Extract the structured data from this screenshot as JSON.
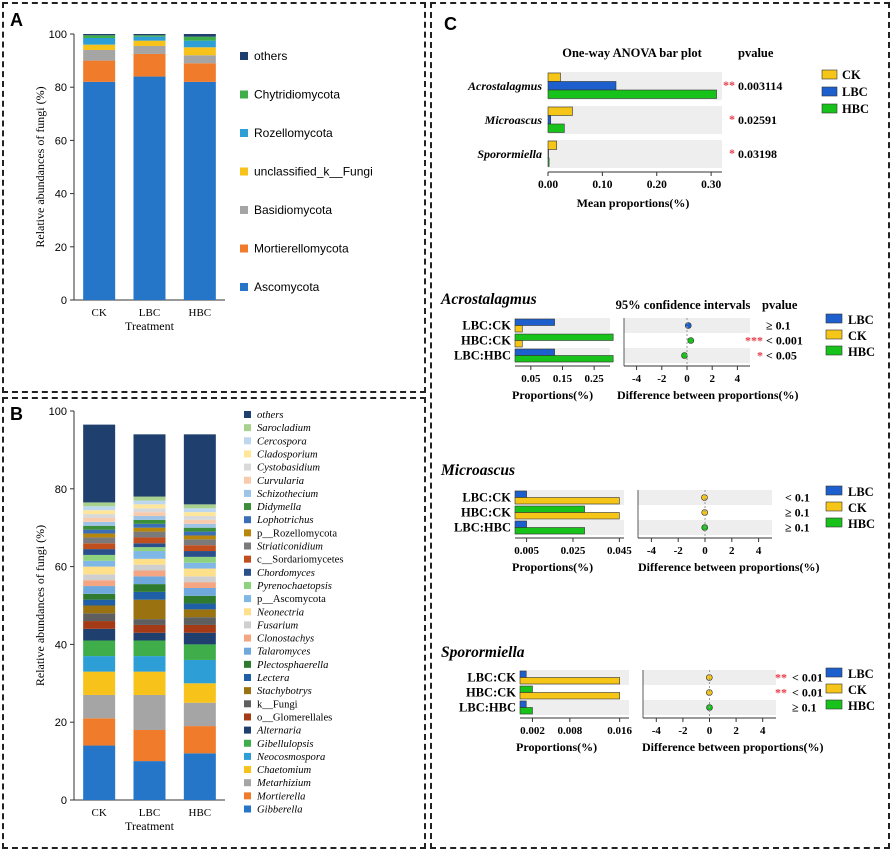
{
  "colors": {
    "others": "#1f3f6e",
    "Chytridiomycota": "#3fae4a",
    "Rozellomycota": "#2e9fd6",
    "unclassified_k__Fungi": "#f7c21a",
    "Basidiomycota": "#a5a5a5",
    "Mortierellomycota": "#f07b2a",
    "Ascomycota": "#2576c8",
    "CK": "#f5c518",
    "LBC": "#1d5fcc",
    "HBC": "#17c21a",
    "star": "#e5424d"
  },
  "chart_data": [
    {
      "panel": "A",
      "type": "bar",
      "stacked": true,
      "categories": [
        "CK",
        "LBC",
        "HBC"
      ],
      "xlabel": "Treatment",
      "ylabel": "Relative  abundances of fungi  (%)",
      "ylim": [
        0,
        100
      ],
      "yticks": [
        0,
        20,
        40,
        60,
        80,
        100
      ],
      "series": [
        {
          "name": "Ascomycota",
          "values": [
            82,
            84,
            82
          ]
        },
        {
          "name": "Mortierellomycota",
          "values": [
            8,
            8.5,
            7
          ]
        },
        {
          "name": "Basidiomycota",
          "values": [
            4,
            3,
            3
          ]
        },
        {
          "name": "unclassified_k__Fungi",
          "values": [
            2,
            2,
            3
          ]
        },
        {
          "name": "Rozellomycota",
          "values": [
            2.5,
            1.5,
            2.5
          ]
        },
        {
          "name": "Chytridiomycota",
          "values": [
            1,
            0.5,
            1.5
          ]
        },
        {
          "name": "others",
          "values": [
            0.5,
            0.5,
            1
          ]
        }
      ],
      "legend": [
        "others",
        "Chytridiomycota",
        "Rozellomycota",
        "unclassified_k__Fungi",
        "Basidiomycota",
        "Mortierellomycota",
        "Ascomycota"
      ]
    },
    {
      "panel": "B",
      "type": "bar",
      "stacked": true,
      "categories": [
        "CK",
        "LBC",
        "HBC"
      ],
      "xlabel": "Treatment",
      "ylabel": "Relative  abundances of fungi  (%)",
      "ylim": [
        0,
        100
      ],
      "yticks": [
        0,
        20,
        40,
        60,
        80,
        100
      ],
      "series": [
        {
          "name": "Gibberella",
          "color": "#2576c8",
          "italic": true,
          "values": [
            14,
            10,
            12
          ]
        },
        {
          "name": "Mortierella",
          "color": "#f07b2a",
          "italic": true,
          "values": [
            7,
            8,
            7
          ]
        },
        {
          "name": "Metarhizium",
          "color": "#a5a5a5",
          "italic": true,
          "values": [
            6,
            9,
            6
          ]
        },
        {
          "name": "Chaetomium",
          "color": "#f7c21a",
          "italic": true,
          "values": [
            6,
            6,
            5
          ]
        },
        {
          "name": "Neocosmospora",
          "color": "#2e9fd6",
          "italic": true,
          "values": [
            4,
            4,
            6
          ]
        },
        {
          "name": "Gibellulopsis",
          "color": "#3fae4a",
          "italic": true,
          "values": [
            4,
            4,
            4
          ]
        },
        {
          "name": "Alternaria",
          "color": "#1f3f6e",
          "italic": true,
          "values": [
            3,
            2,
            3
          ]
        },
        {
          "name": "o__Glomerellales",
          "color": "#a53a16",
          "italic": false,
          "values": [
            2,
            2,
            2
          ]
        },
        {
          "name": "k__Fungi",
          "color": "#5f5f5f",
          "italic": false,
          "values": [
            2,
            1.5,
            2
          ]
        },
        {
          "name": "Stachybotrys",
          "color": "#9a7310",
          "italic": true,
          "values": [
            2,
            5,
            2
          ]
        },
        {
          "name": "Lectera",
          "color": "#1e5fa5",
          "italic": true,
          "values": [
            1.5,
            2,
            1.5
          ]
        },
        {
          "name": "Plectosphaerella",
          "color": "#2e7a2f",
          "italic": true,
          "values": [
            1.5,
            2,
            2
          ]
        },
        {
          "name": "Talaromyces",
          "color": "#6fa8dc",
          "italic": true,
          "values": [
            2,
            2,
            2
          ]
        },
        {
          "name": "Clonostachys",
          "color": "#f4a582",
          "italic": true,
          "values": [
            1.5,
            1.5,
            1.5
          ]
        },
        {
          "name": "Fusarium",
          "color": "#cfcfcf",
          "italic": true,
          "values": [
            1.5,
            1.5,
            1.5
          ]
        },
        {
          "name": "Neonectria",
          "color": "#ffe08a",
          "italic": true,
          "values": [
            2,
            1.5,
            2
          ]
        },
        {
          "name": "p__Ascomycota",
          "color": "#7fb7e6",
          "italic": false,
          "values": [
            1.5,
            2,
            1.5
          ]
        },
        {
          "name": "Pyrenochaetopsis",
          "color": "#8ed27e",
          "italic": true,
          "values": [
            1.5,
            1,
            1.5
          ]
        },
        {
          "name": "Chordomyces",
          "color": "#2a4f8a",
          "italic": true,
          "values": [
            1.5,
            1,
            1.5
          ]
        },
        {
          "name": "c__Sordariomycetes",
          "color": "#c14f1e",
          "italic": false,
          "values": [
            1.5,
            1.5,
            1.5
          ]
        },
        {
          "name": "Striaticonidium",
          "color": "#7a7a7a",
          "italic": true,
          "values": [
            1.5,
            1.5,
            1.5
          ]
        },
        {
          "name": "p__Rozellomycota",
          "color": "#b8860b",
          "italic": false,
          "values": [
            1,
            1,
            1
          ]
        },
        {
          "name": "Lophotrichus",
          "color": "#3a6fb8",
          "italic": true,
          "values": [
            1,
            1,
            1
          ]
        },
        {
          "name": "Didymella",
          "color": "#3b8f3b",
          "italic": true,
          "values": [
            1,
            1,
            1
          ]
        },
        {
          "name": "Schizothecium",
          "color": "#9dc3e6",
          "italic": true,
          "values": [
            1,
            1,
            1
          ]
        },
        {
          "name": "Curvularia",
          "color": "#f8cbad",
          "italic": true,
          "values": [
            1,
            1,
            1
          ]
        },
        {
          "name": "Cystobasidium",
          "color": "#d9d9d9",
          "italic": true,
          "values": [
            1,
            1,
            1
          ]
        },
        {
          "name": "Cladosporium",
          "color": "#ffe699",
          "italic": true,
          "values": [
            1,
            1,
            1
          ]
        },
        {
          "name": "Cercospora",
          "color": "#bdd7ee",
          "italic": true,
          "values": [
            1,
            1,
            1
          ]
        },
        {
          "name": "Sarocladium",
          "color": "#a9d18e",
          "italic": true,
          "values": [
            1,
            1,
            1
          ]
        },
        {
          "name": "others",
          "color": "#1f3f6e",
          "italic": true,
          "values": [
            20,
            16,
            18
          ]
        }
      ]
    },
    {
      "panel": "C",
      "type": "bar",
      "orientation": "horizontal",
      "title": "One-way ANOVA bar plot",
      "pvalue_header": "pvalue",
      "xlabel": "Mean proportions(%)",
      "xlim": [
        0,
        0.32
      ],
      "xticks": [
        "0.00",
        "0.10",
        "0.20",
        "0.30"
      ],
      "xtick_values": [
        0,
        0.1,
        0.2,
        0.3
      ],
      "legend": [
        "CK",
        "LBC",
        "HBC"
      ],
      "rows": [
        {
          "genus": "Acrostalagmus",
          "CK": 0.023,
          "LBC": 0.125,
          "HBC": 0.31,
          "stars": "**",
          "pvalue": "0.003114"
        },
        {
          "genus": "Microascus",
          "CK": 0.045,
          "LBC": 0.005,
          "HBC": 0.03,
          "stars": "*",
          "pvalue": "0.02591"
        },
        {
          "genus": "Sporormiella",
          "CK": 0.016,
          "LBC": 0.001,
          "HBC": 0.002,
          "stars": "*",
          "pvalue": "0.03198"
        }
      ]
    },
    {
      "panel": "C",
      "genus": "Acrostalagmus",
      "type": "bar",
      "subtitle": "95% confidence intervals",
      "pvalue_header": "pvalue",
      "xlabel_left": "Proportions(%)",
      "xlabel_right": "Difference between proportions(%)",
      "left_xlim": [
        0,
        0.3
      ],
      "left_ticks": [
        "0.05",
        "0.15",
        "0.25"
      ],
      "left_tick_values": [
        0.05,
        0.15,
        0.25
      ],
      "right_xlim": [
        -5,
        5
      ],
      "right_ticks": [
        "-4",
        "-2",
        "0",
        "2",
        "4"
      ],
      "right_tick_values": [
        -4,
        -2,
        0,
        2,
        4
      ],
      "legend": [
        "LBC",
        "CK",
        "HBC"
      ],
      "comparisons": [
        {
          "label": "LBC:CK",
          "a": "LBC",
          "a_value": 0.125,
          "b": "CK",
          "b_value": 0.023,
          "diff": 0.1,
          "diff_color": "#1d5fcc",
          "stars": "",
          "pvalue": "≥ 0.1"
        },
        {
          "label": "HBC:CK",
          "a": "HBC",
          "a_value": 0.31,
          "b": "CK",
          "b_value": 0.023,
          "diff": 0.3,
          "diff_color": "#17c21a",
          "stars": "***",
          "pvalue": "< 0.001"
        },
        {
          "label": "LBC:HBC",
          "a": "LBC",
          "a_value": 0.125,
          "b": "HBC",
          "b_value": 0.31,
          "diff": -0.2,
          "diff_color": "#17c21a",
          "stars": "*",
          "pvalue": "< 0.05"
        }
      ]
    },
    {
      "panel": "C",
      "genus": "Microascus",
      "type": "bar",
      "pvalue_header": "",
      "xlabel_left": "Proportions(%)",
      "xlabel_right": "Difference between proportions(%)",
      "left_xlim": [
        0,
        0.047
      ],
      "left_ticks": [
        "0.005",
        "0.025",
        "0.045"
      ],
      "left_tick_values": [
        0.005,
        0.025,
        0.045
      ],
      "right_xlim": [
        -5,
        5
      ],
      "right_ticks": [
        "-4",
        "-2",
        "0",
        "2",
        "4"
      ],
      "right_tick_values": [
        -4,
        -2,
        0,
        2,
        4
      ],
      "legend": [
        "LBC",
        "CK",
        "HBC"
      ],
      "comparisons": [
        {
          "label": "LBC:CK",
          "a": "LBC",
          "a_value": 0.005,
          "b": "CK",
          "b_value": 0.045,
          "diff": -0.04,
          "diff_color": "#f5c518",
          "stars": "",
          "pvalue": "< 0.1"
        },
        {
          "label": "HBC:CK",
          "a": "HBC",
          "a_value": 0.03,
          "b": "CK",
          "b_value": 0.045,
          "diff": -0.02,
          "diff_color": "#f5c518",
          "stars": "",
          "pvalue": "≥ 0.1"
        },
        {
          "label": "LBC:HBC",
          "a": "LBC",
          "a_value": 0.005,
          "b": "HBC",
          "b_value": 0.03,
          "diff": -0.02,
          "diff_color": "#17c21a",
          "stars": "",
          "pvalue": "≥ 0.1"
        }
      ]
    },
    {
      "panel": "C",
      "genus": "Sporormiella",
      "type": "bar",
      "pvalue_header": "",
      "xlabel_left": "Proportions(%)",
      "xlabel_right": "Difference between proportions(%)",
      "left_xlim": [
        0,
        0.0175
      ],
      "left_ticks": [
        "0.002",
        "0.008",
        "0.016"
      ],
      "left_tick_values": [
        0.002,
        0.008,
        0.016
      ],
      "right_xlim": [
        -5,
        5
      ],
      "right_ticks": [
        "-4",
        "-2",
        "0",
        "2",
        "4"
      ],
      "right_tick_values": [
        -4,
        -2,
        0,
        2,
        4
      ],
      "legend": [
        "LBC",
        "CK",
        "HBC"
      ],
      "comparisons": [
        {
          "label": "LBC:CK",
          "a": "LBC",
          "a_value": 0.001,
          "b": "CK",
          "b_value": 0.016,
          "diff": -0.015,
          "diff_color": "#f5c518",
          "stars": "**",
          "pvalue": "< 0.01"
        },
        {
          "label": "HBC:CK",
          "a": "HBC",
          "a_value": 0.002,
          "b": "CK",
          "b_value": 0.016,
          "diff": -0.014,
          "diff_color": "#f5c518",
          "stars": "**",
          "pvalue": "< 0.01"
        },
        {
          "label": "LBC:HBC",
          "a": "LBC",
          "a_value": 0.001,
          "b": "HBC",
          "b_value": 0.002,
          "diff": -0.001,
          "diff_color": "#17c21a",
          "stars": "",
          "pvalue": "≥ 0.1"
        }
      ]
    }
  ],
  "panel_labels": {
    "A": "A",
    "B": "B",
    "C": "C"
  }
}
